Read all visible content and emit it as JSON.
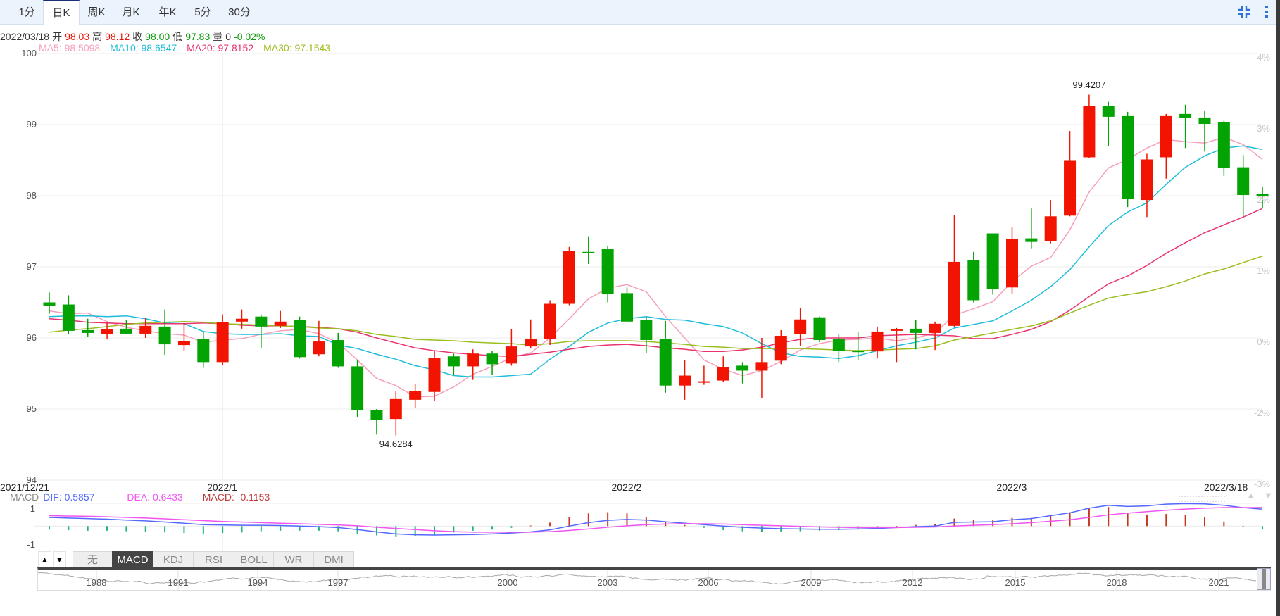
{
  "tabs": {
    "items": [
      "1分",
      "日K",
      "周K",
      "月K",
      "年K",
      "5分",
      "30分"
    ],
    "active_index": 1
  },
  "toolbar": {
    "icons": [
      "compress-icon",
      "more-vertical-icon"
    ]
  },
  "info": {
    "date": "2022/03/18",
    "open_label": "开",
    "open": "98.03",
    "high_label": "高",
    "high": "98.12",
    "close_label": "收",
    "close": "98.00",
    "low_label": "低",
    "low": "97.83",
    "volume_label": "量",
    "volume": "0",
    "change": "-0.02%"
  },
  "ma_legend": {
    "ma5": "MA5: 98.5098",
    "ma10": "MA10: 98.6547",
    "ma20": "MA20: 97.8152",
    "ma30": "MA30: 97.1543"
  },
  "macd_legend": {
    "title": "MACD",
    "dif": "DIF: 0.5857",
    "dea": "DEA: 0.6433",
    "macd": "MACD: -0.1153"
  },
  "indicator_tabs": {
    "up": "▲",
    "down": "▼",
    "items": [
      "无",
      "MACD",
      "KDJ",
      "RSI",
      "BOLL",
      "WR",
      "DMI"
    ],
    "active_index": 1
  },
  "navigator": {
    "years": [
      "1988",
      "1991",
      "1994",
      "1997",
      "2000",
      "2003",
      "2006",
      "2009",
      "2012",
      "2015",
      "2018",
      "2021"
    ]
  },
  "colors": {
    "up": "#f21300",
    "down": "#04a304",
    "ma5": "#f7a0bb",
    "ma10": "#1fbcdc",
    "ma20": "#e8336e",
    "ma30": "#9bbd1e",
    "dif": "#5468ff",
    "dea": "#f055f0",
    "macd_pos": "#c9361f",
    "macd_neg": "#1fb57a",
    "tab_active_border": "#1b2f73"
  },
  "chart_data": [
    {
      "type": "candlestick",
      "title": "日K",
      "ylim": [
        94,
        100
      ],
      "y_ticks": [
        100,
        99,
        98,
        97,
        96,
        95,
        94
      ],
      "y_tick_labels": [
        "100",
        "99",
        "98",
        "97",
        "96",
        "95",
        "94"
      ],
      "right_tick_labels": [
        "4%",
        "3%",
        "2%",
        "1%",
        "0%",
        "-2%",
        "-3%"
      ],
      "x_labels": [
        {
          "index": 0,
          "text": "2021/12/21"
        },
        {
          "index": 9,
          "text": "2022/1"
        },
        {
          "index": 30,
          "text": "2022/2"
        },
        {
          "index": 50,
          "text": "2022/3"
        },
        {
          "index": 63,
          "text": "2022/3/18"
        }
      ],
      "grid": true,
      "annotations": [
        {
          "index": 54,
          "text": "99.4207",
          "position": "above"
        },
        {
          "index": 18,
          "text": "94.6284",
          "position": "below"
        }
      ],
      "ohlc": [
        [
          96.5,
          96.64,
          96.34,
          96.45
        ],
        [
          96.47,
          96.6,
          96.05,
          96.1
        ],
        [
          96.11,
          96.27,
          96.02,
          96.07
        ],
        [
          96.05,
          96.21,
          95.98,
          96.12
        ],
        [
          96.13,
          96.25,
          96.05,
          96.06
        ],
        [
          96.06,
          96.28,
          96.0,
          96.17
        ],
        [
          96.16,
          96.4,
          95.76,
          95.91
        ],
        [
          95.9,
          96.21,
          95.82,
          95.96
        ],
        [
          95.98,
          96.09,
          95.58,
          95.66
        ],
        [
          95.66,
          96.33,
          95.62,
          96.22
        ],
        [
          96.23,
          96.4,
          96.13,
          96.27
        ],
        [
          96.3,
          96.33,
          95.86,
          96.16
        ],
        [
          96.17,
          96.38,
          96.14,
          96.23
        ],
        [
          96.25,
          96.3,
          95.71,
          95.73
        ],
        [
          95.77,
          96.24,
          95.74,
          95.95
        ],
        [
          95.97,
          96.07,
          95.58,
          95.6
        ],
        [
          95.6,
          95.69,
          94.89,
          94.98
        ],
        [
          94.99,
          95.0,
          94.64,
          94.85
        ],
        [
          94.86,
          95.25,
          94.6284,
          95.14
        ],
        [
          95.13,
          95.35,
          95.02,
          95.25
        ],
        [
          95.24,
          95.82,
          95.11,
          95.72
        ],
        [
          95.74,
          95.78,
          95.48,
          95.6
        ],
        [
          95.6,
          95.84,
          95.41,
          95.78
        ],
        [
          95.78,
          95.82,
          95.48,
          95.63
        ],
        [
          95.64,
          96.12,
          95.61,
          95.88
        ],
        [
          95.88,
          96.26,
          95.85,
          95.98
        ],
        [
          95.98,
          96.53,
          95.9,
          96.48
        ],
        [
          96.48,
          97.28,
          96.46,
          97.22
        ],
        [
          97.21,
          97.43,
          97.04,
          97.2
        ],
        [
          97.25,
          97.29,
          96.5,
          96.62
        ],
        [
          96.63,
          96.71,
          96.22,
          96.23
        ],
        [
          96.25,
          96.3,
          95.79,
          95.97
        ],
        [
          95.98,
          96.24,
          95.23,
          95.33
        ],
        [
          95.33,
          95.69,
          95.13,
          95.47
        ],
        [
          95.37,
          95.61,
          95.34,
          95.39
        ],
        [
          95.4,
          95.74,
          95.38,
          95.59
        ],
        [
          95.61,
          95.66,
          95.36,
          95.54
        ],
        [
          95.54,
          96.0,
          95.15,
          95.66
        ],
        [
          95.68,
          96.11,
          95.63,
          96.03
        ],
        [
          96.05,
          96.42,
          95.89,
          96.26
        ],
        [
          96.29,
          96.3,
          95.94,
          95.97
        ],
        [
          95.98,
          96.05,
          95.66,
          95.82
        ],
        [
          95.82,
          96.09,
          95.69,
          95.81
        ],
        [
          95.81,
          96.16,
          95.71,
          96.09
        ],
        [
          96.11,
          96.14,
          95.66,
          96.12
        ],
        [
          96.13,
          96.25,
          95.84,
          96.07
        ],
        [
          96.07,
          96.23,
          95.83,
          96.2
        ],
        [
          96.17,
          97.73,
          96.16,
          97.07
        ],
        [
          97.09,
          97.21,
          96.5,
          96.53
        ],
        [
          97.47,
          97.47,
          96.61,
          96.69
        ],
        [
          96.71,
          97.56,
          96.62,
          97.39
        ],
        [
          97.4,
          97.82,
          97.26,
          97.35
        ],
        [
          97.36,
          97.94,
          97.33,
          97.71
        ],
        [
          97.72,
          98.91,
          97.71,
          98.5
        ],
        [
          98.54,
          99.4207,
          98.53,
          99.26
        ],
        [
          99.26,
          99.32,
          98.7,
          99.11
        ],
        [
          99.12,
          99.18,
          97.84,
          97.95
        ],
        [
          97.94,
          98.59,
          97.7,
          98.51
        ],
        [
          98.54,
          99.15,
          98.24,
          99.12
        ],
        [
          99.15,
          99.28,
          98.67,
          99.09
        ],
        [
          99.1,
          99.2,
          98.62,
          99.01
        ],
        [
          99.03,
          99.05,
          98.28,
          98.39
        ],
        [
          98.4,
          98.57,
          97.71,
          98.01
        ],
        [
          98.03,
          98.12,
          97.83,
          98.0
        ]
      ],
      "series": [
        {
          "name": "MA5",
          "values": [
            96.38,
            96.34,
            96.35,
            96.23,
            96.15,
            96.1,
            96.06,
            96.04,
            95.94,
            95.97,
            95.99,
            96.05,
            96.1,
            96.12,
            96.06,
            95.93,
            95.69,
            95.43,
            95.33,
            95.17,
            95.18,
            95.31,
            95.49,
            95.6,
            95.72,
            95.79,
            96.0,
            96.27,
            96.55,
            96.7,
            96.75,
            96.65,
            96.3,
            96.0,
            95.69,
            95.56,
            95.47,
            95.54,
            95.67,
            95.83,
            95.92,
            95.97,
            95.98,
            96.0,
            95.96,
            96.0,
            96.07,
            96.32,
            96.41,
            96.51,
            96.79,
            97.01,
            97.13,
            97.52,
            98.05,
            98.39,
            98.51,
            98.67,
            98.79,
            98.76,
            98.74,
            98.82,
            98.72,
            98.51
          ]
        },
        {
          "name": "MA10",
          "values": [
            96.3,
            96.31,
            96.31,
            96.3,
            96.31,
            96.27,
            96.21,
            96.2,
            96.09,
            96.06,
            96.05,
            96.05,
            96.06,
            96.03,
            96.02,
            95.9,
            95.85,
            95.77,
            95.7,
            95.61,
            95.55,
            95.47,
            95.45,
            95.45,
            95.47,
            95.49,
            95.7,
            95.88,
            96.08,
            96.21,
            96.27,
            96.3,
            96.26,
            96.25,
            96.2,
            96.16,
            96.07,
            95.92,
            95.79,
            95.74,
            95.73,
            95.71,
            95.75,
            95.82,
            95.89,
            95.94,
            96.0,
            96.14,
            96.19,
            96.24,
            96.38,
            96.53,
            96.72,
            96.96,
            97.28,
            97.58,
            97.77,
            97.9,
            98.16,
            98.4,
            98.56,
            98.67,
            98.7,
            98.65
          ]
        },
        {
          "name": "MA20",
          "values": [
            96.27,
            96.25,
            96.22,
            96.21,
            96.2,
            96.2,
            96.2,
            96.2,
            96.21,
            96.2,
            96.18,
            96.17,
            96.17,
            96.16,
            96.15,
            96.13,
            96.08,
            96.0,
            95.93,
            95.86,
            95.82,
            95.79,
            95.77,
            95.75,
            95.74,
            95.77,
            95.8,
            95.84,
            95.88,
            95.9,
            95.91,
            95.89,
            95.86,
            95.84,
            95.81,
            95.81,
            95.83,
            95.87,
            95.93,
            95.98,
            96.0,
            96.0,
            96.0,
            96.03,
            96.04,
            96.05,
            96.04,
            96.03,
            95.99,
            95.99,
            96.05,
            96.12,
            96.23,
            96.39,
            96.58,
            96.76,
            96.87,
            97.02,
            97.19,
            97.34,
            97.48,
            97.59,
            97.7,
            97.82
          ]
        },
        {
          "name": "MA30",
          "values": [
            96.08,
            96.11,
            96.13,
            96.16,
            96.19,
            96.21,
            96.22,
            96.23,
            96.22,
            96.2,
            96.19,
            96.18,
            96.17,
            96.16,
            96.14,
            96.13,
            96.1,
            96.05,
            96.02,
            95.98,
            95.97,
            95.96,
            95.94,
            95.93,
            95.92,
            95.9,
            95.92,
            95.95,
            95.96,
            95.96,
            95.96,
            95.95,
            95.93,
            95.91,
            95.88,
            95.87,
            95.85,
            95.85,
            95.85,
            95.85,
            95.84,
            95.83,
            95.82,
            95.83,
            95.84,
            95.85,
            95.89,
            95.97,
            96.02,
            96.07,
            96.12,
            96.17,
            96.24,
            96.35,
            96.46,
            96.56,
            96.61,
            96.65,
            96.72,
            96.8,
            96.9,
            96.97,
            97.06,
            97.15
          ]
        }
      ]
    },
    {
      "type": "line",
      "title": "MACD",
      "y_tick_labels": [
        "1",
        "-1"
      ],
      "series": [
        {
          "name": "DIF",
          "values": [
            0.3,
            0.28,
            0.26,
            0.24,
            0.21,
            0.18,
            0.14,
            0.1,
            0.05,
            0.04,
            0.03,
            0.03,
            0.02,
            0.0,
            -0.02,
            -0.05,
            -0.12,
            -0.2,
            -0.27,
            -0.3,
            -0.31,
            -0.3,
            -0.29,
            -0.27,
            -0.24,
            -0.2,
            -0.13,
            0.0,
            0.12,
            0.2,
            0.23,
            0.21,
            0.15,
            0.1,
            0.05,
            0.0,
            -0.04,
            -0.07,
            -0.09,
            -0.1,
            -0.11,
            -0.11,
            -0.1,
            -0.08,
            -0.05,
            -0.02,
            0.0,
            0.13,
            0.14,
            0.15,
            0.22,
            0.26,
            0.36,
            0.46,
            0.62,
            0.72,
            0.68,
            0.7,
            0.76,
            0.78,
            0.77,
            0.72,
            0.64,
            0.5857
          ]
        },
        {
          "name": "DEA",
          "values": [
            0.36,
            0.35,
            0.34,
            0.32,
            0.3,
            0.28,
            0.25,
            0.22,
            0.19,
            0.16,
            0.14,
            0.12,
            0.1,
            0.08,
            0.06,
            0.04,
            0.01,
            -0.04,
            -0.08,
            -0.12,
            -0.16,
            -0.19,
            -0.21,
            -0.21,
            -0.21,
            -0.21,
            -0.19,
            -0.15,
            -0.1,
            -0.04,
            0.01,
            0.05,
            0.07,
            0.08,
            0.08,
            0.07,
            0.05,
            0.03,
            0.01,
            -0.01,
            -0.03,
            -0.04,
            -0.05,
            -0.05,
            -0.05,
            -0.04,
            -0.03,
            0.0,
            0.03,
            0.05,
            0.08,
            0.12,
            0.17,
            0.22,
            0.3,
            0.39,
            0.45,
            0.5,
            0.55,
            0.59,
            0.62,
            0.64,
            0.64,
            0.6433
          ]
        }
      ],
      "histogram": "2 * (DIF - DEA)"
    }
  ]
}
